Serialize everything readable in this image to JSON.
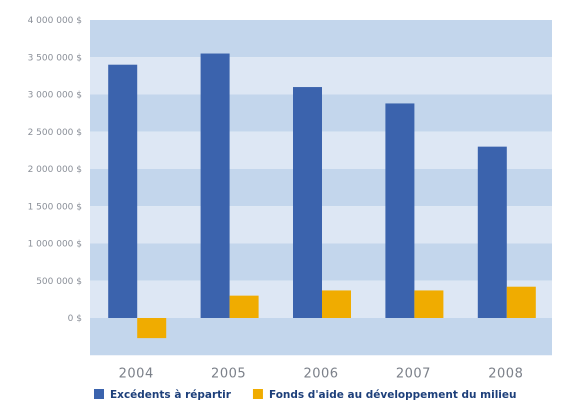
{
  "chart_data": {
    "type": "bar",
    "categories": [
      "2004",
      "2005",
      "2006",
      "2007",
      "2008"
    ],
    "series": [
      {
        "name": "Excédents à répartir",
        "color": "#3b63ad",
        "values": [
          3400000,
          3550000,
          3100000,
          2880000,
          2300000
        ]
      },
      {
        "name": "Fonds d'aide au développement du milieu",
        "color": "#f0ac00",
        "values": [
          -270000,
          300000,
          370000,
          370000,
          420000
        ]
      }
    ],
    "ylim": [
      -500000,
      4000000
    ],
    "yticks": [
      0,
      500000,
      1000000,
      1500000,
      2000000,
      2500000,
      3000000,
      3500000,
      4000000
    ],
    "ytick_labels": [
      "0 $",
      "500 000 $",
      "1 000 000 $",
      "1 500 000 $",
      "2 000 000 $",
      "2 500 000 $",
      "3 000 000 $",
      "3 500 000 $",
      "4 000 000 $"
    ],
    "title": "",
    "xlabel": "",
    "ylabel": "",
    "grid": true,
    "band_colors": [
      "#c3d6ec",
      "#dde7f4"
    ],
    "legend_position": "bottom"
  }
}
